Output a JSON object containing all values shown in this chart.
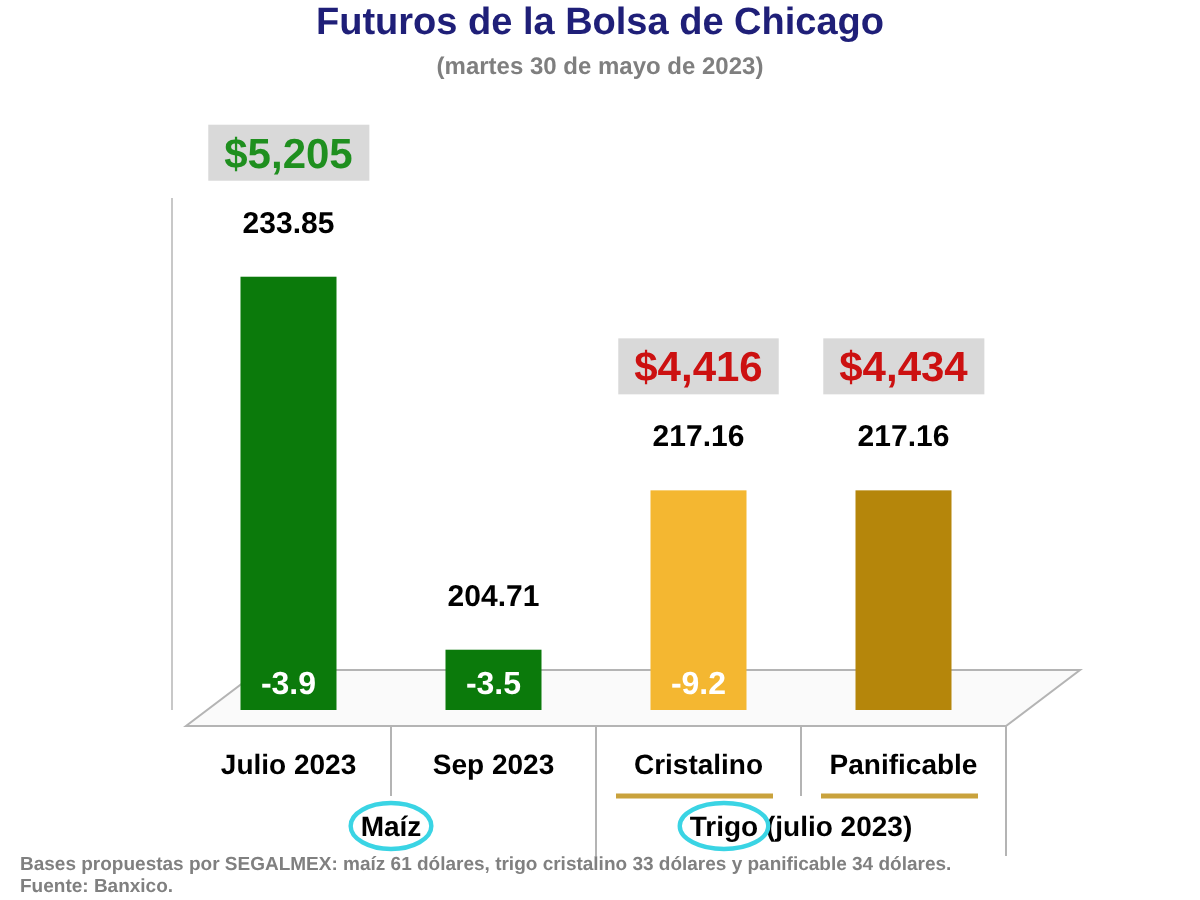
{
  "chart_data": {
    "type": "bar",
    "title": "Futuros de la Bolsa de Chicago",
    "subtitle": "(martes 30 de mayo de 2023)",
    "categories": [
      "Julio 2023",
      "Sep 2023",
      "Cristalino",
      "Panificable"
    ],
    "values": [
      233.85,
      204.71,
      217.16,
      217.16
    ],
    "colors": [
      "#0b7a0b",
      "#0b7a0b",
      "#f4b731",
      "#b5860b"
    ],
    "ylim": [
      200,
      240
    ],
    "data_labels": true,
    "annotations": [
      "$5,205",
      "$4,416",
      "$4,434",
      "-3.9",
      "-3.5",
      "-9.2",
      "Maíz",
      "Trigo (julio 2023)",
      "Bases propuestas por SEGALMEX: maíz 61 dólares, trigo cristalino 33 dólares y panificable 34 dólares.",
      "Fuente: Banxico."
    ]
  }
}
